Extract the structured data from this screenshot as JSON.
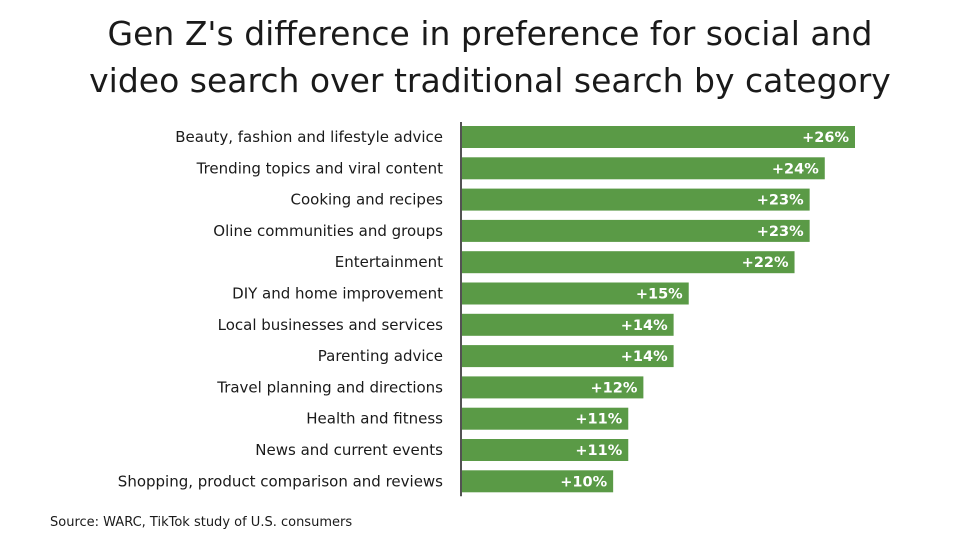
{
  "chart_data": {
    "type": "bar",
    "orientation": "horizontal",
    "title_lines": [
      "Gen Z's difference in preference for social and",
      "video search over traditional search by category"
    ],
    "categories": [
      "Beauty, fashion and lifestyle advice",
      "Trending topics and viral content",
      "Cooking and recipes",
      "Oline communities and groups",
      "Entertainment",
      "DIY and home improvement",
      "Local businesses and services",
      "Parenting advice",
      "Travel planning and directions",
      "Health and fitness",
      "News and current events",
      "Shopping, product comparison and reviews"
    ],
    "values": [
      26,
      24,
      23,
      23,
      22,
      15,
      14,
      14,
      12,
      11,
      11,
      10
    ],
    "value_labels": [
      "+26%",
      "+24%",
      "+23%",
      "+23%",
      "+22%",
      "+15%",
      "+14%",
      "+14%",
      "+12%",
      "+11%",
      "+11%",
      "+10%"
    ],
    "unit": "%",
    "xlim": [
      0,
      26
    ],
    "grid": false,
    "legend": "none",
    "bar_color": "#5a9a46",
    "axis_color": "#1a1a1a",
    "source": "Source: WARC, TikTok study of U.S. consumers"
  }
}
